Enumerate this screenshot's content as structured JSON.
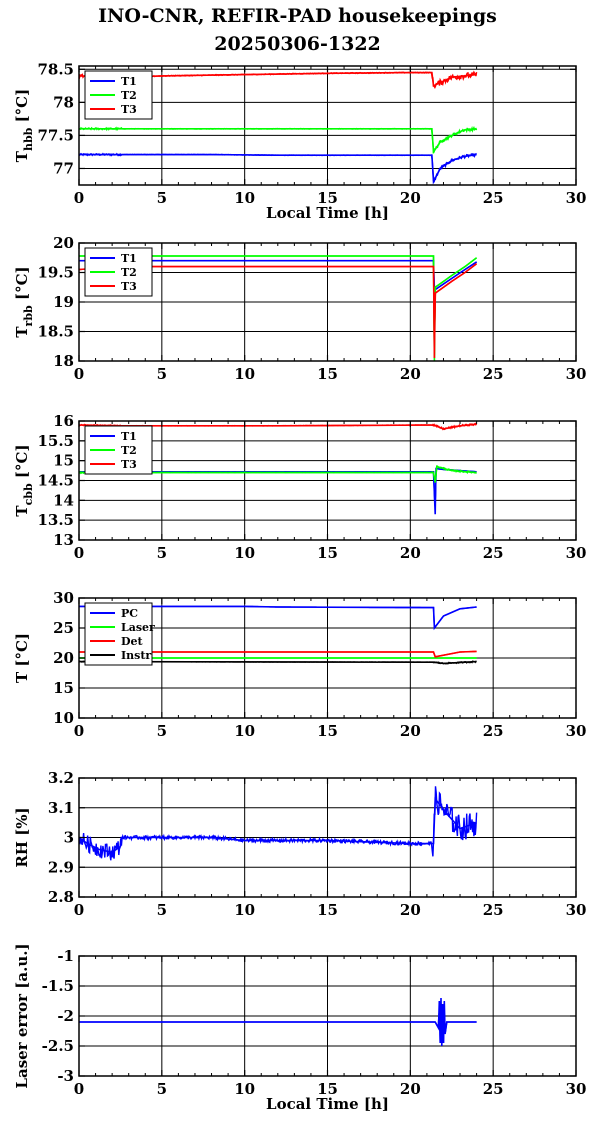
{
  "title_line1": "INO-CNR, REFIR-PAD housekeepings",
  "title_line2": "20250306-1322",
  "chart_data": [
    {
      "type": "line",
      "ylabel_main": "T",
      "ylabel_sub": "hbb",
      "ylabel_tail": " [°C]",
      "xlabel": "Local Time [h]",
      "xlim": [
        0,
        30
      ],
      "xticks": [
        "0",
        "5",
        "10",
        "15",
        "20",
        "25",
        "30"
      ],
      "ylim": [
        76.75,
        78.55
      ],
      "yticks": [
        {
          "v": 77,
          "t": "77"
        },
        {
          "v": 77.5,
          "t": "77.5"
        },
        {
          "v": 78,
          "t": "78"
        },
        {
          "v": 78.5,
          "t": "78.5"
        }
      ],
      "grid": true,
      "legend": "top-left",
      "series": [
        {
          "name": "T1",
          "color": "#0000ff",
          "noise": 0.01,
          "points": [
            [
              0,
              77.21
            ],
            [
              2.5,
              77.21
            ],
            [
              8,
              77.21
            ],
            [
              12,
              77.2
            ],
            [
              20,
              77.2
            ],
            [
              21.3,
              77.2
            ],
            [
              21.4,
              76.8
            ],
            [
              21.8,
              77.0
            ],
            [
              22.5,
              77.12
            ],
            [
              23.2,
              77.18
            ],
            [
              24,
              77.21
            ]
          ]
        },
        {
          "name": "T2",
          "color": "#00ff00",
          "noise": 0.01,
          "points": [
            [
              0,
              77.6
            ],
            [
              2.5,
              77.6
            ],
            [
              8,
              77.6
            ],
            [
              12,
              77.6
            ],
            [
              20,
              77.6
            ],
            [
              21.3,
              77.6
            ],
            [
              21.4,
              77.25
            ],
            [
              21.8,
              77.4
            ],
            [
              22.5,
              77.5
            ],
            [
              23.2,
              77.58
            ],
            [
              24,
              77.6
            ]
          ]
        },
        {
          "name": "T3",
          "color": "#ff0000",
          "noise": 0.02,
          "points": [
            [
              0,
              78.4
            ],
            [
              2.5,
              78.38
            ],
            [
              5,
              78.4
            ],
            [
              10,
              78.42
            ],
            [
              15,
              78.44
            ],
            [
              20,
              78.45
            ],
            [
              21.3,
              78.45
            ],
            [
              21.4,
              78.25
            ],
            [
              22.5,
              78.38
            ],
            [
              24,
              78.42
            ]
          ]
        }
      ]
    },
    {
      "type": "line",
      "ylabel_main": "T",
      "ylabel_sub": "rbb",
      "ylabel_tail": " [°C]",
      "xlabel": "",
      "xlim": [
        0,
        30
      ],
      "xticks": [
        "0",
        "5",
        "10",
        "15",
        "20",
        "25",
        "30"
      ],
      "ylim": [
        18,
        20
      ],
      "yticks": [
        {
          "v": 18,
          "t": "18"
        },
        {
          "v": 18.5,
          "t": "18.5"
        },
        {
          "v": 19,
          "t": "19"
        },
        {
          "v": 19.5,
          "t": "19.5"
        },
        {
          "v": 20,
          "t": "20"
        }
      ],
      "grid": true,
      "legend": "top-left",
      "series": [
        {
          "name": "T1",
          "color": "#0000ff",
          "noise": 0.0,
          "points": [
            [
              0,
              19.7
            ],
            [
              2.5,
              19.7
            ],
            [
              12,
              19.7
            ],
            [
              20,
              19.7
            ],
            [
              21.4,
              19.7
            ],
            [
              21.45,
              19.2
            ],
            [
              22.5,
              19.4
            ],
            [
              23.3,
              19.55
            ],
            [
              24,
              19.68
            ]
          ]
        },
        {
          "name": "T2",
          "color": "#00ff00",
          "noise": 0.0,
          "points": [
            [
              0,
              19.78
            ],
            [
              12,
              19.78
            ],
            [
              21.4,
              19.78
            ],
            [
              21.45,
              18.0
            ],
            [
              21.5,
              19.25
            ],
            [
              22.5,
              19.45
            ],
            [
              23.3,
              19.6
            ],
            [
              24,
              19.75
            ]
          ]
        },
        {
          "name": "T3",
          "color": "#ff0000",
          "noise": 0.0,
          "points": [
            [
              0,
              19.55
            ],
            [
              2.5,
              19.6
            ],
            [
              12,
              19.6
            ],
            [
              20,
              19.6
            ],
            [
              21.4,
              19.6
            ],
            [
              21.45,
              18.05
            ],
            [
              21.5,
              19.15
            ],
            [
              22.5,
              19.35
            ],
            [
              23.3,
              19.5
            ],
            [
              24,
              19.65
            ]
          ]
        }
      ]
    },
    {
      "type": "line",
      "ylabel_main": "T",
      "ylabel_sub": "cbb",
      "ylabel_tail": " [°C]",
      "xlabel": "",
      "xlim": [
        0,
        30
      ],
      "xticks": [
        "0",
        "5",
        "10",
        "15",
        "20",
        "25",
        "30"
      ],
      "ylim": [
        13,
        16
      ],
      "yticks": [
        {
          "v": 13,
          "t": "13"
        },
        {
          "v": 13.5,
          "t": "13.5"
        },
        {
          "v": 14,
          "t": "14"
        },
        {
          "v": 14.5,
          "t": "14.5"
        },
        {
          "v": 15,
          "t": "15"
        },
        {
          "v": 15.5,
          "t": "15.5"
        },
        {
          "v": 16,
          "t": "16"
        }
      ],
      "grid": true,
      "legend": "top-left",
      "series": [
        {
          "name": "T1",
          "color": "#0000ff",
          "noise": 0.0,
          "points": [
            [
              0,
              14.72
            ],
            [
              12,
              14.72
            ],
            [
              21.4,
              14.72
            ],
            [
              21.5,
              13.65
            ],
            [
              21.55,
              14.8
            ],
            [
              22,
              14.78
            ],
            [
              24,
              14.72
            ]
          ]
        },
        {
          "name": "T2",
          "color": "#00ff00",
          "noise": 0.01,
          "points": [
            [
              0,
              14.7
            ],
            [
              12,
              14.7
            ],
            [
              21.4,
              14.7
            ],
            [
              21.5,
              14.45
            ],
            [
              21.6,
              14.85
            ],
            [
              22.5,
              14.75
            ],
            [
              24,
              14.7
            ]
          ]
        },
        {
          "name": "T3",
          "color": "#ff0000",
          "noise": 0.01,
          "points": [
            [
              0,
              15.9
            ],
            [
              2.5,
              15.88
            ],
            [
              12,
              15.88
            ],
            [
              21.4,
              15.9
            ],
            [
              22,
              15.8
            ],
            [
              23,
              15.88
            ],
            [
              24,
              15.92
            ]
          ]
        }
      ]
    },
    {
      "type": "line",
      "ylabel_main": "T [°C]",
      "ylabel_sub": "",
      "ylabel_tail": "",
      "xlabel": "",
      "xlim": [
        0,
        30
      ],
      "xticks": [
        "0",
        "5",
        "10",
        "15",
        "20",
        "25",
        "30"
      ],
      "ylim": [
        10,
        30
      ],
      "yticks": [
        {
          "v": 10,
          "t": "10"
        },
        {
          "v": 15,
          "t": "15"
        },
        {
          "v": 20,
          "t": "20"
        },
        {
          "v": 25,
          "t": "25"
        },
        {
          "v": 30,
          "t": "30"
        }
      ],
      "grid": true,
      "legend": "top-left",
      "series": [
        {
          "name": "PC",
          "color": "#0000ff",
          "noise": 0.0,
          "points": [
            [
              0,
              28.6
            ],
            [
              10,
              28.6
            ],
            [
              12,
              28.5
            ],
            [
              21.4,
              28.4
            ],
            [
              21.45,
              25.0
            ],
            [
              22,
              27.0
            ],
            [
              23,
              28.2
            ],
            [
              24,
              28.5
            ]
          ]
        },
        {
          "name": "Laser",
          "color": "#00ff00",
          "noise": 0.0,
          "points": [
            [
              0,
              20.0
            ],
            [
              21.4,
              20.0
            ],
            [
              24,
              20.0
            ]
          ]
        },
        {
          "name": "Det",
          "color": "#ff0000",
          "noise": 0.0,
          "points": [
            [
              0,
              21.0
            ],
            [
              21.4,
              21.0
            ],
            [
              21.5,
              20.2
            ],
            [
              23,
              21.0
            ],
            [
              24,
              21.1
            ]
          ]
        },
        {
          "name": "Instr",
          "color": "#000000",
          "noise": 0.05,
          "points": [
            [
              0,
              19.4
            ],
            [
              21.4,
              19.3
            ],
            [
              22,
              19.1
            ],
            [
              24,
              19.4
            ]
          ]
        }
      ]
    },
    {
      "type": "line",
      "ylabel_main": "RH [%]",
      "ylabel_sub": "",
      "ylabel_tail": "",
      "xlabel": "",
      "xlim": [
        0,
        30
      ],
      "xticks": [
        "0",
        "5",
        "10",
        "15",
        "20",
        "25",
        "30"
      ],
      "ylim": [
        2.8,
        3.2
      ],
      "yticks": [
        {
          "v": 2.8,
          "t": "2.8"
        },
        {
          "v": 2.9,
          "t": "2.9"
        },
        {
          "v": 3,
          "t": "3"
        },
        {
          "v": 3.1,
          "t": "3.1"
        },
        {
          "v": 3.2,
          "t": "3.2"
        }
      ],
      "grid": true,
      "legend": "none",
      "series": [
        {
          "name": "",
          "color": "#0000ff",
          "noise": 0.02,
          "points": [
            [
              0,
              3.0
            ],
            [
              0.5,
              2.98
            ],
            [
              1.2,
              2.96
            ],
            [
              2.0,
              2.95
            ],
            [
              2.5,
              2.97
            ],
            [
              2.55,
              3.0
            ],
            [
              8,
              3.0
            ],
            [
              10,
              2.99
            ],
            [
              15,
              2.99
            ],
            [
              20,
              2.98
            ],
            [
              21.4,
              2.98
            ],
            [
              21.5,
              3.13
            ],
            [
              22.2,
              3.08
            ],
            [
              23,
              3.03
            ],
            [
              24,
              3.05
            ]
          ]
        }
      ]
    },
    {
      "type": "line",
      "ylabel_main": "Laser error [a.u.]",
      "ylabel_sub": "",
      "ylabel_tail": "",
      "xlabel": "Local Time [h]",
      "xlim": [
        0,
        30
      ],
      "xticks": [
        "0",
        "5",
        "10",
        "15",
        "20",
        "25",
        "30"
      ],
      "ylim": [
        -3,
        -1
      ],
      "yticks": [
        {
          "v": -3,
          "t": "-3"
        },
        {
          "v": -2.5,
          "t": "-2.5"
        },
        {
          "v": -2,
          "t": "-2"
        },
        {
          "v": -1.5,
          "t": "-1.5"
        },
        {
          "v": -1,
          "t": "-1"
        }
      ],
      "grid": true,
      "legend": "none",
      "series": [
        {
          "name": "",
          "color": "#0000ff",
          "noise": 0.0,
          "points": [
            [
              0,
              -2.1
            ],
            [
              2.5,
              -2.1
            ],
            [
              21.5,
              -2.1
            ],
            [
              21.7,
              -2.2
            ],
            [
              21.75,
              -1.75
            ],
            [
              21.8,
              -2.45
            ],
            [
              21.85,
              -1.7
            ],
            [
              21.9,
              -2.5
            ],
            [
              21.95,
              -1.8
            ],
            [
              22.0,
              -2.45
            ],
            [
              22.05,
              -1.75
            ],
            [
              22.1,
              -2.3
            ],
            [
              22.2,
              -2.1
            ],
            [
              24,
              -2.1
            ]
          ]
        }
      ]
    }
  ]
}
